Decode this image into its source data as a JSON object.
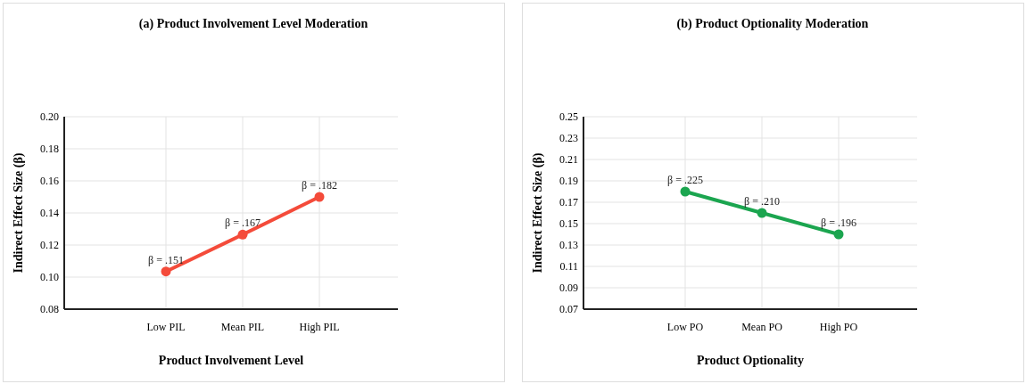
{
  "chart_data": [
    {
      "type": "line",
      "title": "(a) Product Involvement Level Moderation",
      "xlabel": "Product Involvement Level",
      "ylabel": "Indirect Effect Size (β)",
      "categories": [
        "Low PIL",
        "Mean PIL",
        "High PIL"
      ],
      "series": [
        {
          "color": "#f44b3a",
          "values": [
            0.1035,
            0.1265,
            0.15
          ]
        }
      ],
      "annotations": [
        {
          "text": "β = .151",
          "x": "Low PIL",
          "y": 0.1035
        },
        {
          "text": "β = .167",
          "x": "Mean PIL",
          "y": 0.1265
        },
        {
          "text": "β = .182",
          "x": "High PIL",
          "y": 0.15
        }
      ],
      "ylim": [
        0.08,
        0.2
      ],
      "yticks": [
        {
          "value": 0.08,
          "label": "0.08"
        },
        {
          "value": 0.1,
          "label": "0.10"
        },
        {
          "value": 0.12,
          "label": "0.12"
        },
        {
          "value": 0.14,
          "label": "0.14"
        },
        {
          "value": 0.16,
          "label": "0.16"
        },
        {
          "value": 0.18,
          "label": "0.18"
        },
        {
          "value": 0.2,
          "label": "0.20"
        }
      ],
      "grid": true,
      "marker": "circle",
      "line_style": "solid"
    },
    {
      "type": "line",
      "title": "(b) Product Optionality Moderation",
      "xlabel": "Product Optionality",
      "ylabel": "Indirect Effect Size (β)",
      "categories": [
        "Low PO",
        "Mean PO",
        "High PO"
      ],
      "series": [
        {
          "color": "#1ba54f",
          "values": [
            0.18,
            0.16,
            0.14
          ]
        }
      ],
      "annotations": [
        {
          "text": "β = .225",
          "x": "Low PO",
          "y": 0.18
        },
        {
          "text": "β = .210",
          "x": "Mean PO",
          "y": 0.16
        },
        {
          "text": "β = .196",
          "x": "High PO",
          "y": 0.14
        }
      ],
      "ylim": [
        0.07,
        0.25
      ],
      "yticks": [
        {
          "value": 0.07,
          "label": "0.07"
        },
        {
          "value": 0.09,
          "label": "0.09"
        },
        {
          "value": 0.11,
          "label": "0.11"
        },
        {
          "value": 0.13,
          "label": "0.13"
        },
        {
          "value": 0.15,
          "label": "0.15"
        },
        {
          "value": 0.17,
          "label": "0.17"
        },
        {
          "value": 0.19,
          "label": "0.19"
        },
        {
          "value": 0.21,
          "label": "0.21"
        },
        {
          "value": 0.23,
          "label": "0.23"
        },
        {
          "value": 0.25,
          "label": "0.25"
        }
      ],
      "grid": true,
      "marker": "circle",
      "line_style": "solid"
    }
  ]
}
